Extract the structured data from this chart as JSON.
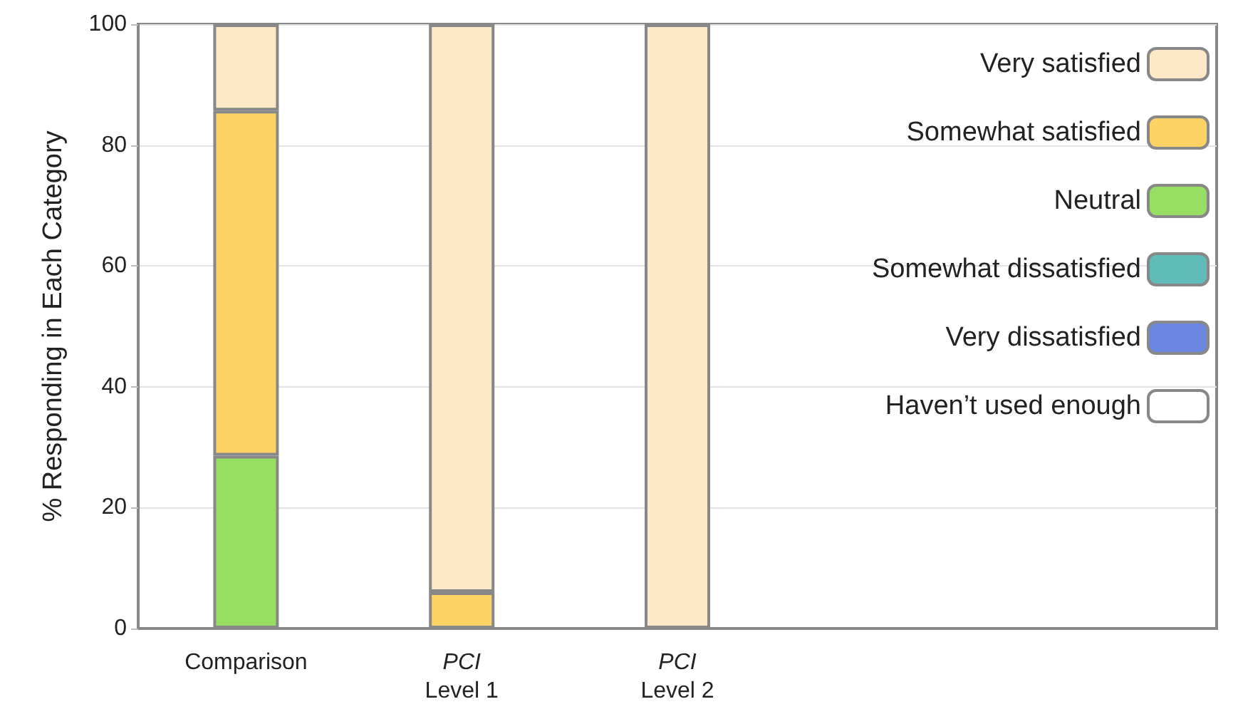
{
  "chart_data": {
    "type": "bar",
    "stacked": true,
    "ylabel": "% Responding in Each Category",
    "categories": [
      "Comparison",
      "PCI\nLevel 1",
      "PCI\nLevel 2"
    ],
    "series": [
      {
        "name": "Haven’t used enough",
        "color": "#ffffff",
        "values": [
          null,
          null,
          null
        ]
      },
      {
        "name": "Very dissatisfied",
        "color": "#6b86e0",
        "values": [
          null,
          null,
          null
        ]
      },
      {
        "name": "Somewhat dissatisfied",
        "color": "#5fbcb8",
        "values": [
          null,
          null,
          null
        ]
      },
      {
        "name": "Neutral",
        "color": "#97df62",
        "values": [
          28.6,
          null,
          null
        ]
      },
      {
        "name": "Somewhat satisfied",
        "color": "#fdd366",
        "values": [
          57.1,
          6,
          null
        ]
      },
      {
        "name": "Very satisfied",
        "color": "#fde9c8",
        "values": [
          14.3,
          94,
          100
        ]
      }
    ],
    "ylim": [
      0,
      100
    ],
    "yticks": [
      0,
      20,
      40,
      60,
      80,
      100
    ],
    "grid": "y",
    "legend": "top right"
  }
}
